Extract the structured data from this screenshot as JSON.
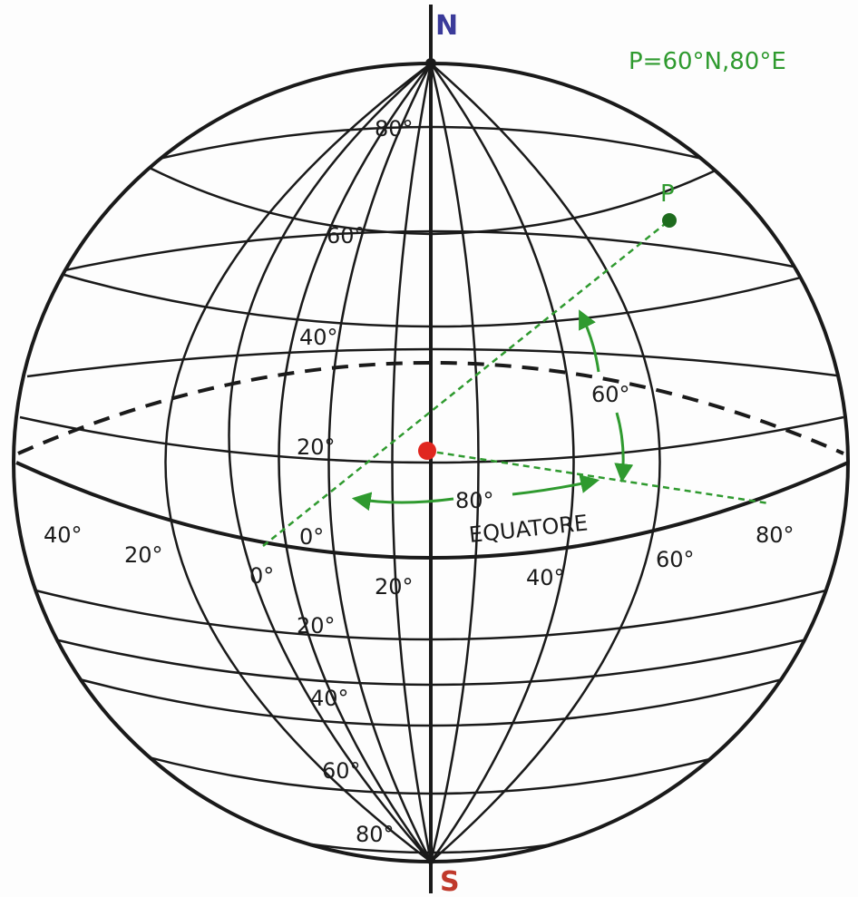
{
  "diagram": {
    "north_label": "N",
    "south_label": "S",
    "point_label": "P",
    "point_coords_label": "P=60°N,80°E",
    "equator_label": "EQUATORE",
    "latitude_angle_label": "60°",
    "longitude_angle_label": "80°",
    "latitude_labels_north": [
      "80°",
      "60°",
      "40°",
      "20°"
    ],
    "latitude_labels_south": [
      "20°",
      "40°",
      "60°",
      "80°"
    ],
    "longitude_labels": [
      "40°",
      "20°",
      "0°",
      "20°",
      "40°",
      "60°",
      "80°"
    ],
    "prime_meridian_label": "0°",
    "colors": {
      "grid": "#1a1a1a",
      "point_and_arrows": "#2f9a2f",
      "center": "#e0261f",
      "north": "#3b3b9a",
      "south": "#c0392b"
    }
  }
}
